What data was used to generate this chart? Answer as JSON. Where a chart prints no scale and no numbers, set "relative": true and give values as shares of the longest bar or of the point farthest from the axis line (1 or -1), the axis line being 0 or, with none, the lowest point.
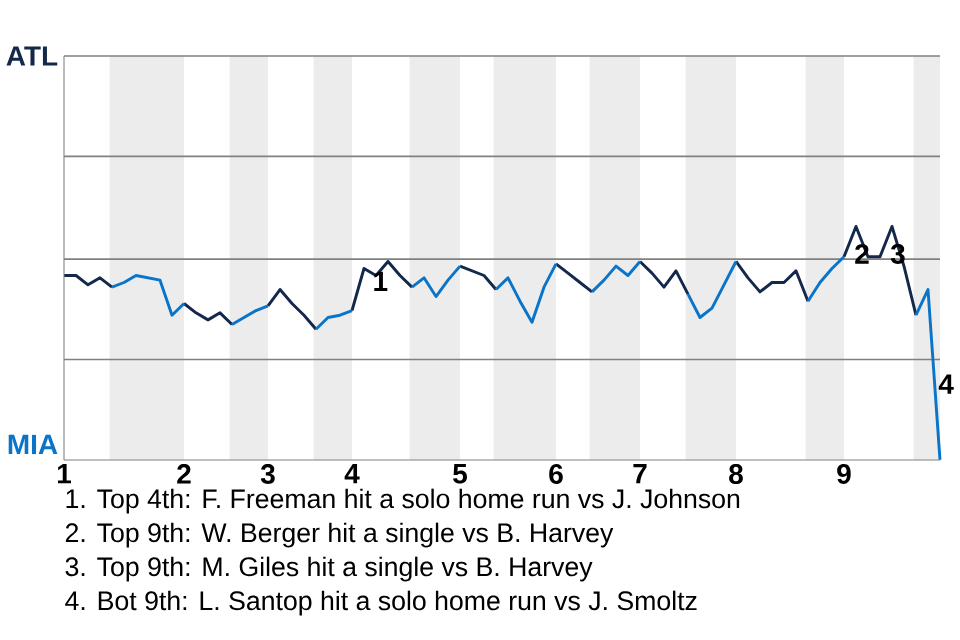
{
  "chart_data": {
    "type": "line",
    "relative": true,
    "categories": [
      "1",
      null,
      null,
      null,
      null,
      null,
      null,
      null,
      null,
      null,
      "2",
      null,
      null,
      null,
      null,
      null,
      null,
      "3",
      null,
      null,
      null,
      null,
      null,
      null,
      "4",
      null,
      null,
      null,
      null,
      null,
      null,
      null,
      null,
      "5",
      null,
      null,
      null,
      null,
      null,
      null,
      null,
      "6",
      null,
      null,
      null,
      null,
      null,
      null,
      "7",
      null,
      null,
      null,
      null,
      null,
      null,
      null,
      "8",
      null,
      null,
      null,
      null,
      null,
      null,
      null,
      null,
      "9",
      null,
      null,
      null,
      null,
      null,
      null,
      null,
      null
    ],
    "series": [
      {
        "color": "#14284b",
        "values": [
          0.79,
          0.79,
          0.75,
          0.78,
          0.74,
          null,
          null,
          null,
          null,
          null,
          0.67,
          0.63,
          0.6,
          0.63,
          0.58,
          null,
          null,
          0.66,
          0.73,
          0.67,
          0.62,
          0.56,
          null,
          null,
          0.64,
          0.82,
          0.79,
          0.85,
          0.79,
          0.74,
          null,
          null,
          null,
          0.83,
          0.81,
          0.79,
          0.73,
          null,
          null,
          null,
          null,
          0.84,
          0.8,
          0.76,
          0.72,
          null,
          null,
          null,
          0.85,
          0.8,
          0.74,
          0.81,
          0.71,
          null,
          null,
          null,
          0.85,
          0.78,
          0.72,
          0.76,
          0.76,
          0.81,
          0.68,
          null,
          null,
          0.87,
          1,
          0.87,
          0.87,
          1,
          0.83,
          0.62,
          null,
          null
        ]
      },
      {
        "color": "#0a74c8",
        "values": [
          null,
          null,
          null,
          null,
          0.74,
          0.76,
          0.79,
          0.78,
          0.77,
          0.62,
          0.67,
          null,
          null,
          null,
          0.58,
          0.61,
          0.64,
          0.66,
          null,
          null,
          null,
          0.56,
          0.61,
          0.62,
          0.64,
          null,
          null,
          null,
          null,
          0.74,
          0.78,
          0.7,
          0.77,
          0.83,
          null,
          null,
          0.73,
          0.78,
          0.68,
          0.59,
          0.74,
          0.84,
          null,
          null,
          0.72,
          0.77,
          0.83,
          0.79,
          0.85,
          null,
          null,
          null,
          0.71,
          0.61,
          0.65,
          0.75,
          0.85,
          null,
          null,
          null,
          null,
          null,
          0.68,
          0.76,
          0.82,
          0.87,
          null,
          null,
          null,
          null,
          null,
          0.62,
          0.73,
          0
        ]
      }
    ],
    "ref_lines": [
      {
        "axis": "y",
        "value": 0.43,
        "color": "#808080"
      },
      {
        "axis": "y",
        "value": 0.86,
        "color": "#808080"
      },
      {
        "axis": "y",
        "value": 1.3,
        "color": "#808080"
      },
      {
        "axis": "y",
        "value": 1.73,
        "color": "#808080"
      }
    ],
    "annotations": [
      "ATL",
      "MIA",
      {
        "text": "1",
        "y": 0.82
      },
      "2",
      "3",
      "4",
      "1. Top 4th: F. Freeman hit a solo home run vs J. Johnson",
      "2. Top 9th: W. Berger hit a single vs B. Harvey",
      "3. Top 9th: M. Giles hit a single vs B. Harvey",
      "4. Bot 9th: L. Santop hit a solo home run vs J. Smoltz"
    ]
  }
}
